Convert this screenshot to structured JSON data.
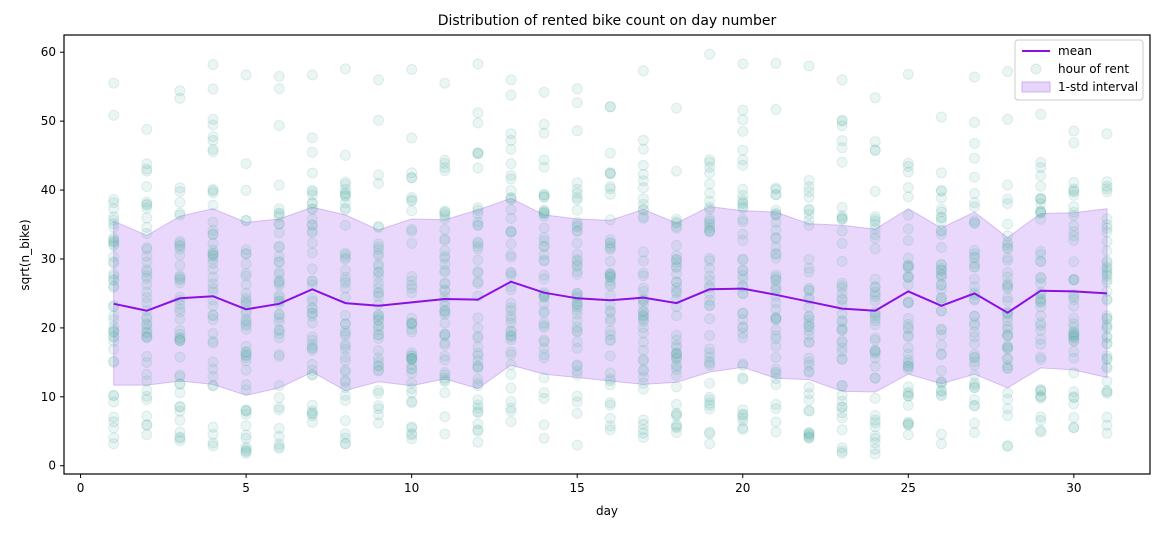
{
  "chart_data": {
    "type": "scatter",
    "title": "Distribution of rented bike count on day number",
    "xlabel": "day",
    "ylabel": "sqrt(n_bike)",
    "xlim": [
      -0.5,
      32.3
    ],
    "ylim": [
      -1.2,
      62.5
    ],
    "xticks": [
      0,
      5,
      10,
      15,
      20,
      25,
      30
    ],
    "yticks": [
      0,
      10,
      20,
      30,
      40,
      50,
      60
    ],
    "legend_position": "top-right",
    "grid": false,
    "days": [
      1,
      2,
      3,
      4,
      5,
      6,
      7,
      8,
      9,
      10,
      11,
      12,
      13,
      14,
      15,
      16,
      17,
      18,
      19,
      20,
      21,
      22,
      23,
      24,
      25,
      26,
      27,
      28,
      29,
      30,
      31
    ],
    "series": [
      {
        "name": "mean",
        "kind": "line",
        "color": "#8b10e6",
        "values": [
          23.5,
          22.5,
          24.3,
          24.6,
          22.7,
          23.5,
          25.6,
          23.6,
          23.2,
          23.7,
          24.2,
          24.1,
          26.7,
          25.1,
          24.3,
          24.0,
          24.4,
          23.6,
          25.6,
          25.7,
          24.8,
          23.8,
          22.8,
          22.5,
          25.3,
          23.2,
          25.0,
          22.2,
          25.4,
          25.3,
          25.0
        ]
      },
      {
        "name": "hour of rent",
        "kind": "scatter",
        "color": "#5fb3a8",
        "min": [
          3.2,
          4.5,
          3.6,
          2.9,
          1.8,
          2.5,
          6.3,
          3.2,
          6.2,
          3.9,
          4.6,
          3.4,
          6.4,
          4.0,
          3.0,
          5.2,
          4.1,
          4.8,
          3.2,
          5.3,
          4.9,
          4.0,
          1.8,
          1.7,
          4.5,
          3.2,
          4.8,
          2.8,
          4.9,
          5.5,
          4.7
        ],
        "max": [
          55.5,
          48.8,
          54.4,
          58.2,
          56.7,
          56.5,
          56.7,
          57.6,
          56.0,
          57.5,
          55.5,
          58.3,
          56.0,
          54.2,
          54.7,
          52.1,
          57.3,
          51.9,
          59.7,
          58.3,
          58.4,
          58.0,
          56.0,
          53.4,
          56.8,
          50.6,
          56.4,
          57.2,
          51.0,
          54.6,
          55.1
        ]
      },
      {
        "name": "1-std interval",
        "kind": "band",
        "color": "#d7b8f7",
        "upper": [
          35.5,
          33.4,
          36.2,
          37.3,
          35.3,
          35.8,
          37.5,
          36.4,
          34.2,
          35.8,
          35.7,
          37.1,
          38.8,
          36.4,
          35.8,
          35.6,
          37.2,
          35.2,
          37.6,
          37.0,
          36.8,
          35.1,
          34.9,
          34.3,
          37.3,
          34.5,
          36.8,
          33.1,
          36.6,
          36.7,
          37.3
        ],
        "lower": [
          11.7,
          11.7,
          12.3,
          11.8,
          10.2,
          11.3,
          13.6,
          10.9,
          12.2,
          11.6,
          12.6,
          11.2,
          14.6,
          13.3,
          12.8,
          12.3,
          11.8,
          12.1,
          13.6,
          14.3,
          12.7,
          12.5,
          10.8,
          10.7,
          13.3,
          11.9,
          13.3,
          11.3,
          14.2,
          13.9,
          12.8
        ]
      }
    ]
  }
}
